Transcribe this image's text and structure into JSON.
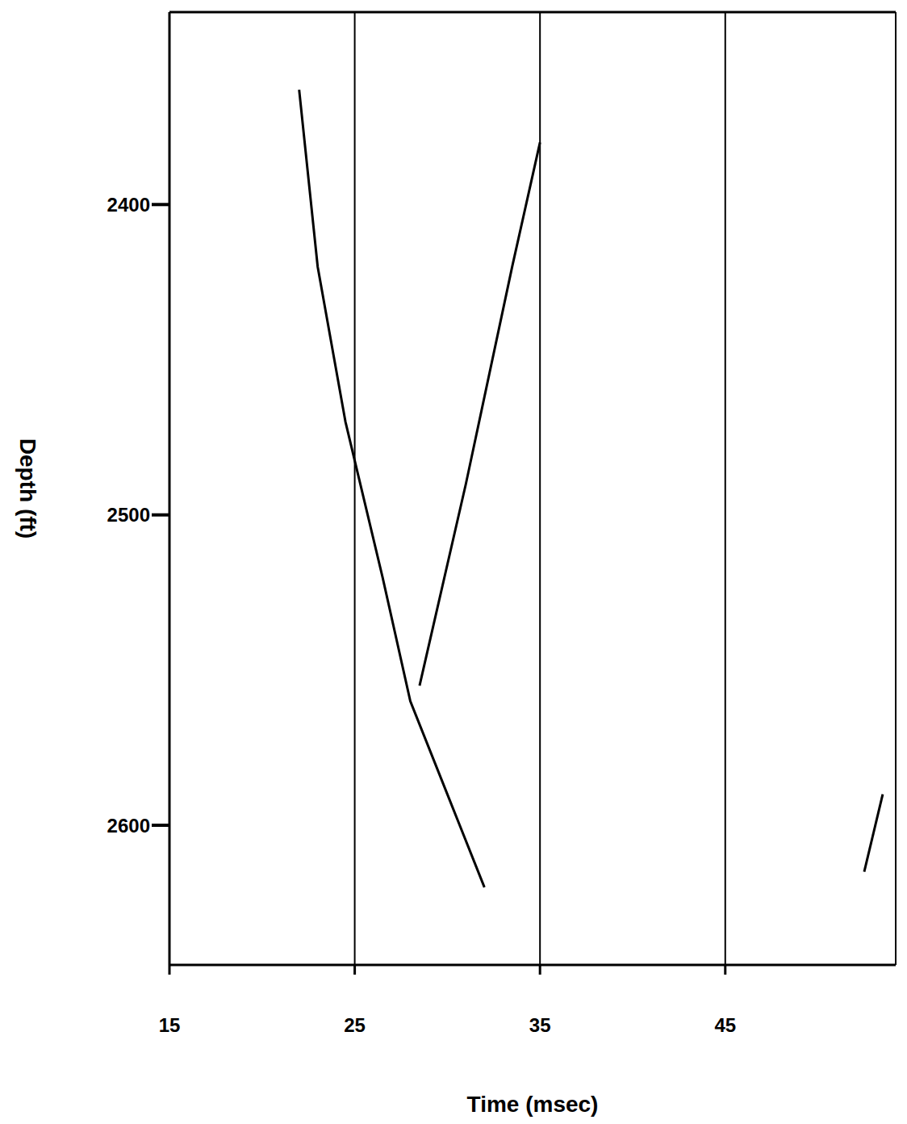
{
  "chart_data": {
    "type": "line",
    "x_label": "Time (msec)",
    "y_label": "Depth (ft)",
    "xlim": [
      15,
      54.2
    ],
    "xticks": [
      15,
      25,
      35,
      45
    ],
    "ylim": [
      2338,
      2645
    ],
    "yticks": [
      2400,
      2500,
      2600
    ],
    "grid": "x",
    "marker": "none",
    "series": [
      {
        "color": "#000000",
        "x": [
          22,
          23,
          24.5,
          26.5,
          28,
          30,
          32
        ],
        "values": [
          2363,
          2420,
          2470,
          2520,
          2560,
          2590,
          2620
        ]
      },
      {
        "color": "#000000",
        "x": [
          28.5,
          31,
          33.5,
          35
        ],
        "values": [
          2555,
          2490,
          2420,
          2380
        ]
      },
      {
        "color": "#000000",
        "x": [
          53.5,
          52.5
        ],
        "values": [
          2590,
          2615
        ]
      }
    ]
  }
}
